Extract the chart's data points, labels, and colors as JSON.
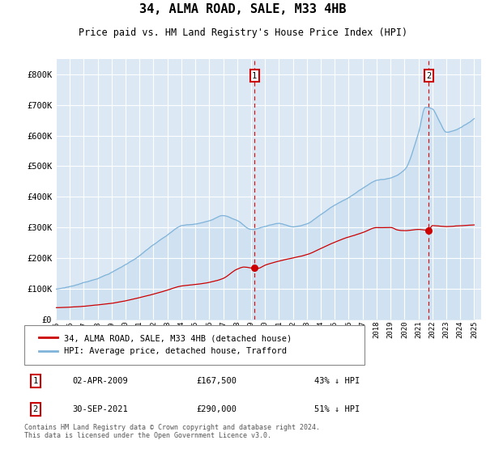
{
  "title": "34, ALMA ROAD, SALE, M33 4HB",
  "subtitle": "Price paid vs. HM Land Registry's House Price Index (HPI)",
  "red_label": "34, ALMA ROAD, SALE, M33 4HB (detached house)",
  "blue_label": "HPI: Average price, detached house, Trafford",
  "annotation1": {
    "num": "1",
    "date": "02-APR-2009",
    "price": "£167,500",
    "pct": "43% ↓ HPI",
    "x_year": 2009.25
  },
  "annotation2": {
    "num": "2",
    "date": "30-SEP-2021",
    "price": "£290,000",
    "pct": "51% ↓ HPI",
    "x_year": 2021.75
  },
  "footnote": "Contains HM Land Registry data © Crown copyright and database right 2024.\nThis data is licensed under the Open Government Licence v3.0.",
  "ylim": [
    0,
    850000
  ],
  "xlim_start": 1995.0,
  "xlim_end": 2025.5,
  "fig_bg": "#ffffff",
  "plot_bg": "#dce9f5",
  "red_color": "#cc0000",
  "blue_color": "#7fb3d9",
  "fill_color": "#c5dcf0",
  "grid_color": "#ffffff",
  "ann_box_color": "#cc0000"
}
